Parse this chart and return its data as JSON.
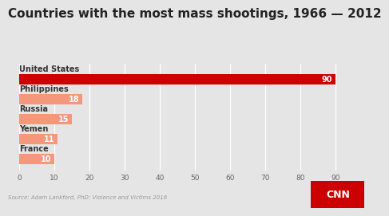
{
  "title": "Countries with the most mass shootings, 1966 — 2012",
  "countries": [
    "United States",
    "Philippines",
    "Russia",
    "Yemen",
    "France"
  ],
  "values": [
    90,
    18,
    15,
    11,
    10
  ],
  "bar_colors": [
    "#cc0000",
    "#f4977a",
    "#f4977a",
    "#f4977a",
    "#f4977a"
  ],
  "xlim": [
    0,
    90
  ],
  "xticks": [
    0,
    10,
    20,
    30,
    40,
    50,
    60,
    70,
    80,
    90
  ],
  "background_color": "#e5e5e5",
  "plot_bg_color": "#e5e5e5",
  "title_fontsize": 11,
  "label_fontsize": 7,
  "country_fontsize": 7,
  "source_text": "Source: Adam Lankford, PhD: Violence and Victims 2016",
  "cnn_text": "CNN",
  "cnn_bg": "#cc0000"
}
